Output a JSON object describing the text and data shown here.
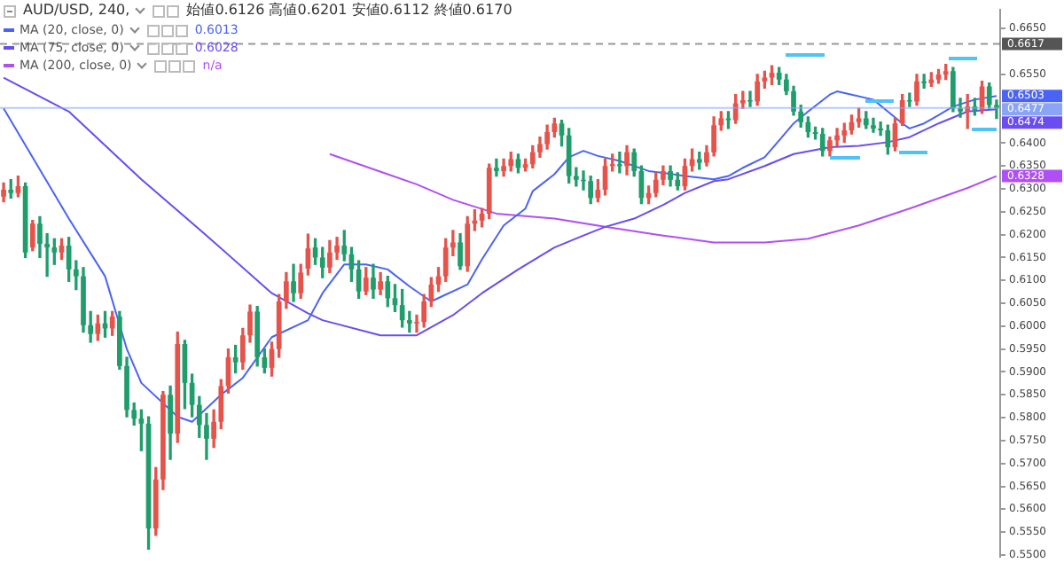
{
  "chart_data": {
    "type": "candlestick",
    "title": "AUD/USD, 240,",
    "subtitle": "始値0.6126 高値0.6201 安値0.6112 終値0.6170",
    "categories": [
      null,
      null,
      null,
      null,
      null,
      null,
      null,
      null,
      null,
      null,
      null,
      null,
      null,
      null,
      null,
      null,
      null,
      null,
      null,
      null,
      null,
      null,
      null,
      null,
      null,
      null,
      null,
      null,
      null,
      null,
      null,
      null,
      null,
      null,
      null,
      null,
      null,
      null,
      null,
      null,
      null,
      null,
      null,
      null,
      null,
      null,
      null,
      null,
      null,
      null,
      null,
      null,
      null,
      null,
      null,
      null,
      null,
      null,
      null,
      null,
      null,
      null,
      null,
      null,
      null,
      null,
      null,
      null,
      null,
      null,
      null,
      null,
      null,
      null,
      null,
      null,
      null,
      null,
      null,
      null,
      null,
      null,
      null,
      null,
      null,
      null,
      null,
      null,
      null,
      null,
      null,
      null,
      null,
      null,
      null,
      null,
      null,
      null,
      null,
      null,
      null,
      null,
      null,
      null,
      null,
      null,
      null,
      null,
      null,
      null,
      null,
      null,
      null,
      null,
      null,
      null,
      null,
      null,
      null,
      null,
      null,
      null,
      null,
      null,
      null,
      null,
      null,
      null,
      null,
      null,
      null,
      null,
      null,
      null,
      null,
      null,
      null,
      null
    ],
    "ohlc": [
      [
        0.6283,
        0.6313,
        0.6272,
        0.6298
      ],
      [
        0.6298,
        0.632,
        0.628,
        0.6291
      ],
      [
        0.6291,
        0.6328,
        0.6283,
        0.6306
      ],
      [
        0.6306,
        0.6313,
        0.615,
        0.6161
      ],
      [
        0.6172,
        0.6231,
        0.6165,
        0.6224
      ],
      [
        0.6224,
        0.6239,
        0.615,
        0.618
      ],
      [
        0.618,
        0.6202,
        0.6109,
        0.6172
      ],
      [
        0.6172,
        0.6191,
        0.6135,
        0.6161
      ],
      [
        0.6161,
        0.6191,
        0.6146,
        0.6176
      ],
      [
        0.6176,
        0.6194,
        0.6098,
        0.6124
      ],
      [
        0.6124,
        0.6143,
        0.608,
        0.6109
      ],
      [
        0.6109,
        0.6128,
        0.5987,
        0.6002
      ],
      [
        0.6002,
        0.6032,
        0.5965,
        0.5983
      ],
      [
        0.5983,
        0.6024,
        0.5969,
        0.6006
      ],
      [
        0.6006,
        0.6032,
        0.5976,
        0.5995
      ],
      [
        0.5995,
        0.6032,
        0.598,
        0.6021
      ],
      [
        0.6021,
        0.6032,
        0.5906,
        0.5913
      ],
      [
        0.5913,
        0.5932,
        0.5802,
        0.5817
      ],
      [
        0.5817,
        0.5832,
        0.5784,
        0.5798
      ],
      [
        0.5798,
        0.5817,
        0.5728,
        0.5787
      ],
      [
        0.5787,
        0.5802,
        0.5513,
        0.5558
      ],
      [
        0.5558,
        0.5691,
        0.5543,
        0.5665
      ],
      [
        0.5665,
        0.5857,
        0.5643,
        0.585
      ],
      [
        0.585,
        0.5869,
        0.5709,
        0.5765
      ],
      [
        0.5765,
        0.5987,
        0.5746,
        0.5961
      ],
      [
        0.5961,
        0.5969,
        0.582,
        0.5876
      ],
      [
        0.5876,
        0.5895,
        0.5802,
        0.5828
      ],
      [
        0.5828,
        0.5846,
        0.5757,
        0.5784
      ],
      [
        0.5784,
        0.5809,
        0.5709,
        0.5754
      ],
      [
        0.5754,
        0.5817,
        0.5735,
        0.5791
      ],
      [
        0.5791,
        0.5883,
        0.5776,
        0.5869
      ],
      [
        0.5869,
        0.595,
        0.5854,
        0.5932
      ],
      [
        0.5932,
        0.5958,
        0.5898,
        0.5921
      ],
      [
        0.5921,
        0.5995,
        0.5906,
        0.598
      ],
      [
        0.598,
        0.6046,
        0.5965,
        0.6032
      ],
      [
        0.6032,
        0.6043,
        0.5913,
        0.5932
      ],
      [
        0.5932,
        0.595,
        0.5898,
        0.5909
      ],
      [
        0.5909,
        0.5965,
        0.5891,
        0.595
      ],
      [
        0.595,
        0.6069,
        0.5932,
        0.6054
      ],
      [
        0.6054,
        0.6117,
        0.6039,
        0.6098
      ],
      [
        0.6098,
        0.6135,
        0.6054,
        0.6072
      ],
      [
        0.6072,
        0.6135,
        0.6061,
        0.6117
      ],
      [
        0.6126,
        0.6201,
        0.6112,
        0.617
      ],
      [
        0.6172,
        0.6191,
        0.6135,
        0.615
      ],
      [
        0.615,
        0.6172,
        0.6106,
        0.6128
      ],
      [
        0.6128,
        0.6187,
        0.6117,
        0.6161
      ],
      [
        0.6161,
        0.6194,
        0.6146,
        0.6176
      ],
      [
        0.6176,
        0.6209,
        0.6143,
        0.6157
      ],
      [
        0.6157,
        0.6172,
        0.6098,
        0.6124
      ],
      [
        0.6124,
        0.6143,
        0.6061,
        0.6076
      ],
      [
        0.6076,
        0.6128,
        0.6069,
        0.6106
      ],
      [
        0.6106,
        0.6135,
        0.6061,
        0.608
      ],
      [
        0.608,
        0.6117,
        0.6069,
        0.6098
      ],
      [
        0.6098,
        0.6109,
        0.6043,
        0.6061
      ],
      [
        0.6061,
        0.6091,
        0.6032,
        0.6046
      ],
      [
        0.6046,
        0.608,
        0.5998,
        0.6013
      ],
      [
        0.6013,
        0.6032,
        0.5987,
        0.6006
      ],
      [
        0.6006,
        0.6024,
        0.5987,
        0.6009
      ],
      [
        0.6009,
        0.6069,
        0.5998,
        0.6054
      ],
      [
        0.6054,
        0.6106,
        0.6043,
        0.6091
      ],
      [
        0.6091,
        0.6128,
        0.6076,
        0.6109
      ],
      [
        0.6109,
        0.6191,
        0.6098,
        0.6172
      ],
      [
        0.6172,
        0.6209,
        0.6154,
        0.6183
      ],
      [
        0.6183,
        0.6202,
        0.6124,
        0.6131
      ],
      [
        0.6131,
        0.6239,
        0.612,
        0.6224
      ],
      [
        0.6224,
        0.6254,
        0.6209,
        0.6231
      ],
      [
        0.6231,
        0.6257,
        0.6217,
        0.6246
      ],
      [
        0.6246,
        0.6354,
        0.6235,
        0.6346
      ],
      [
        0.6346,
        0.6365,
        0.6328,
        0.6339
      ],
      [
        0.6339,
        0.6365,
        0.6328,
        0.635
      ],
      [
        0.635,
        0.638,
        0.6339,
        0.6365
      ],
      [
        0.6365,
        0.6376,
        0.6335,
        0.6346
      ],
      [
        0.6346,
        0.6365,
        0.6339,
        0.6354
      ],
      [
        0.6354,
        0.6394,
        0.6346,
        0.638
      ],
      [
        0.638,
        0.6413,
        0.6369,
        0.6398
      ],
      [
        0.6398,
        0.6439,
        0.6387,
        0.6424
      ],
      [
        0.6424,
        0.6454,
        0.6413,
        0.6443
      ],
      [
        0.6443,
        0.645,
        0.6394,
        0.6417
      ],
      [
        0.6417,
        0.6432,
        0.6313,
        0.6328
      ],
      [
        0.6328,
        0.6346,
        0.6306,
        0.632
      ],
      [
        0.632,
        0.6339,
        0.6298,
        0.6317
      ],
      [
        0.6317,
        0.6328,
        0.6268,
        0.628
      ],
      [
        0.628,
        0.632,
        0.6272,
        0.6298
      ],
      [
        0.6298,
        0.6365,
        0.6287,
        0.635
      ],
      [
        0.635,
        0.6376,
        0.6339,
        0.6354
      ],
      [
        0.6354,
        0.638,
        0.6335,
        0.635
      ],
      [
        0.635,
        0.6394,
        0.6331,
        0.638
      ],
      [
        0.638,
        0.6387,
        0.6328,
        0.6339
      ],
      [
        0.6339,
        0.635,
        0.6268,
        0.628
      ],
      [
        0.628,
        0.6306,
        0.6268,
        0.6291
      ],
      [
        0.6291,
        0.6335,
        0.6283,
        0.632
      ],
      [
        0.632,
        0.635,
        0.6309,
        0.6339
      ],
      [
        0.6339,
        0.635,
        0.6306,
        0.632
      ],
      [
        0.632,
        0.6335,
        0.6298,
        0.6306
      ],
      [
        0.6306,
        0.6365,
        0.6298,
        0.635
      ],
      [
        0.635,
        0.6387,
        0.6339,
        0.6365
      ],
      [
        0.6365,
        0.638,
        0.6343,
        0.6357
      ],
      [
        0.6357,
        0.6394,
        0.635,
        0.638
      ],
      [
        0.638,
        0.6457,
        0.6372,
        0.6439
      ],
      [
        0.6439,
        0.6469,
        0.6428,
        0.6454
      ],
      [
        0.6454,
        0.6469,
        0.6432,
        0.645
      ],
      [
        0.645,
        0.6506,
        0.6443,
        0.6487
      ],
      [
        0.6487,
        0.6513,
        0.6476,
        0.6494
      ],
      [
        0.6494,
        0.6513,
        0.648,
        0.6491
      ],
      [
        0.6491,
        0.655,
        0.6483,
        0.6535
      ],
      [
        0.6535,
        0.6557,
        0.652,
        0.6543
      ],
      [
        0.6543,
        0.6569,
        0.6528,
        0.6554
      ],
      [
        0.6554,
        0.6565,
        0.6528,
        0.6539
      ],
      [
        0.6539,
        0.655,
        0.6506,
        0.6513
      ],
      [
        0.6513,
        0.6524,
        0.6461,
        0.6469
      ],
      [
        0.6469,
        0.6483,
        0.6435,
        0.6446
      ],
      [
        0.6446,
        0.6457,
        0.6413,
        0.6424
      ],
      [
        0.6424,
        0.6435,
        0.6409,
        0.642
      ],
      [
        0.642,
        0.6432,
        0.6372,
        0.6383
      ],
      [
        0.6383,
        0.6413,
        0.6372,
        0.6406
      ],
      [
        0.6406,
        0.6432,
        0.6394,
        0.6417
      ],
      [
        0.6417,
        0.6443,
        0.6402,
        0.6428
      ],
      [
        0.6428,
        0.6461,
        0.642,
        0.6446
      ],
      [
        0.6446,
        0.6476,
        0.6435,
        0.6454
      ],
      [
        0.6454,
        0.6469,
        0.6432,
        0.6439
      ],
      [
        0.6439,
        0.6454,
        0.6424,
        0.6432
      ],
      [
        0.6432,
        0.6446,
        0.6417,
        0.6428
      ],
      [
        0.6428,
        0.6439,
        0.6376,
        0.6391
      ],
      [
        0.6391,
        0.6454,
        0.6383,
        0.6443
      ],
      [
        0.6443,
        0.6506,
        0.6439,
        0.6494
      ],
      [
        0.6494,
        0.6509,
        0.648,
        0.6491
      ],
      [
        0.6491,
        0.655,
        0.6483,
        0.6535
      ],
      [
        0.6535,
        0.655,
        0.652,
        0.6531
      ],
      [
        0.6531,
        0.6554,
        0.6524,
        0.6539
      ],
      [
        0.6539,
        0.6561,
        0.6531,
        0.655
      ],
      [
        0.655,
        0.6572,
        0.6539,
        0.6557
      ],
      [
        0.6557,
        0.6565,
        0.6469,
        0.6476
      ],
      [
        0.6476,
        0.6498,
        0.6457,
        0.6469
      ],
      [
        0.6469,
        0.6506,
        0.6432,
        0.648
      ],
      [
        0.648,
        0.6498,
        0.6461,
        0.6472
      ],
      [
        0.6472,
        0.6535,
        0.6465,
        0.6524
      ],
      [
        0.6524,
        0.6531,
        0.6476,
        0.6483
      ],
      [
        0.6483,
        0.6494,
        0.6454,
        0.6477
      ]
    ],
    "colors": [
      "#e5534b",
      "#1f9d6b",
      "#e5534b",
      "#1f9d6b",
      "#e5534b",
      "#1f9d6b",
      "#1f9d6b",
      "#1f9d6b",
      "#e5534b",
      "#1f9d6b",
      "#1f9d6b",
      "#1f9d6b",
      "#1f9d6b",
      "#e5534b",
      "#1f9d6b",
      "#e5534b",
      "#1f9d6b",
      "#1f9d6b",
      "#1f9d6b",
      "#1f9d6b",
      "#1f9d6b",
      "#e5534b",
      "#e5534b",
      "#1f9d6b",
      "#e5534b",
      "#1f9d6b",
      "#1f9d6b",
      "#1f9d6b",
      "#1f9d6b",
      "#e5534b",
      "#e5534b",
      "#e5534b",
      "#1f9d6b",
      "#e5534b",
      "#e5534b",
      "#1f9d6b",
      "#1f9d6b",
      "#e5534b",
      "#e5534b",
      "#e5534b",
      "#1f9d6b",
      "#e5534b",
      "#e5534b",
      "#1f9d6b",
      "#1f9d6b",
      "#e5534b",
      "#e5534b",
      "#1f9d6b",
      "#1f9d6b",
      "#1f9d6b",
      "#e5534b",
      "#1f9d6b",
      "#e5534b",
      "#1f9d6b",
      "#1f9d6b",
      "#1f9d6b",
      "#1f9d6b",
      "#e5534b",
      "#e5534b",
      "#e5534b",
      "#e5534b",
      "#e5534b",
      "#e5534b",
      "#1f9d6b",
      "#e5534b",
      "#e5534b",
      "#e5534b",
      "#e5534b",
      "#1f9d6b",
      "#e5534b",
      "#e5534b",
      "#1f9d6b",
      "#e5534b",
      "#e5534b",
      "#e5534b",
      "#e5534b",
      "#e5534b",
      "#1f9d6b",
      "#1f9d6b",
      "#1f9d6b",
      "#1f9d6b",
      "#1f9d6b",
      "#e5534b",
      "#e5534b",
      "#e5534b",
      "#1f9d6b",
      "#e5534b",
      "#1f9d6b",
      "#1f9d6b",
      "#e5534b",
      "#e5534b",
      "#e5534b",
      "#1f9d6b",
      "#1f9d6b",
      "#e5534b",
      "#e5534b",
      "#1f9d6b",
      "#e5534b",
      "#e5534b",
      "#e5534b",
      "#1f9d6b",
      "#e5534b",
      "#e5534b",
      "#1f9d6b",
      "#e5534b",
      "#e5534b",
      "#e5534b",
      "#1f9d6b",
      "#1f9d6b",
      "#1f9d6b",
      "#1f9d6b",
      "#1f9d6b",
      "#1f9d6b",
      "#1f9d6b",
      "#e5534b",
      "#e5534b",
      "#e5534b",
      "#e5534b",
      "#e5534b",
      "#1f9d6b",
      "#1f9d6b",
      "#1f9d6b",
      "#1f9d6b",
      "#e5534b",
      "#e5534b",
      "#1f9d6b",
      "#e5534b",
      "#1f9d6b",
      "#e5534b",
      "#e5534b",
      "#e5534b",
      "#1f9d6b",
      "#1f9d6b",
      "#e5534b",
      "#1f9d6b",
      "#e5534b",
      "#1f9d6b",
      "#1f9d6b"
    ],
    "series": [
      {
        "type": "line",
        "name": "MA (20, close, 0)",
        "color": "#4a63f5",
        "values": [
          0.6476,
          null,
          null,
          null,
          null,
          null,
          null,
          null,
          null,
          0.6235,
          null,
          null,
          null,
          null,
          0.6109,
          null,
          null,
          0.595,
          null,
          0.5876,
          null,
          null,
          null,
          null,
          0.5802,
          null,
          0.5791,
          null,
          null,
          null,
          0.585,
          null,
          null,
          0.5887,
          null,
          null,
          null,
          0.5976,
          null,
          null,
          null,
          null,
          0.6013,
          null,
          0.6072,
          null,
          null,
          0.6135,
          null,
          null,
          0.6135,
          null,
          null,
          0.6124,
          null,
          null,
          0.6087,
          null,
          null,
          0.6054,
          null,
          0.6069,
          null,
          null,
          0.6091,
          null,
          0.6146,
          null,
          null,
          0.622,
          null,
          null,
          0.6257,
          0.6295,
          null,
          null,
          0.6332,
          null,
          0.6369,
          null,
          0.6383,
          null,
          0.6372,
          null,
          null,
          0.6361,
          null,
          null,
          null,
          0.6339,
          null,
          0.6335,
          null,
          null,
          0.6328,
          null,
          null,
          null,
          0.6321,
          null,
          0.6328,
          null,
          0.6346,
          null,
          null,
          0.6369,
          null,
          0.6406,
          null,
          0.6443,
          null,
          0.6469,
          null,
          null,
          0.6506,
          0.6513,
          null,
          0.6506,
          null,
          null,
          0.6495,
          null,
          0.6469,
          null,
          0.6443,
          0.6432,
          null,
          0.6443,
          null,
          0.6461,
          null,
          0.648,
          null,
          null,
          0.6495,
          null,
          null,
          0.6503
        ]
      },
      {
        "type": "line",
        "name": "MA (75, close, 0)",
        "color": "#6a4cf0",
        "values": [
          0.6543,
          null,
          null,
          null,
          null,
          null,
          null,
          null,
          null,
          0.6469,
          null,
          null,
          null,
          null,
          null,
          null,
          null,
          null,
          null,
          0.6321,
          null,
          null,
          null,
          null,
          null,
          null,
          null,
          null,
          0.6198,
          null,
          null,
          null,
          null,
          null,
          null,
          null,
          null,
          0.6072,
          null,
          null,
          null,
          null,
          0.6028,
          null,
          0.6013,
          null,
          null,
          null,
          null,
          null,
          null,
          null,
          0.598,
          null,
          null,
          null,
          null,
          0.598,
          null,
          null,
          null,
          null,
          0.6024,
          null,
          null,
          null,
          0.6072,
          null,
          null,
          null,
          null,
          0.6124,
          null,
          null,
          null,
          null,
          0.6172,
          null,
          null,
          null,
          0.6198,
          null,
          null,
          0.6217,
          null,
          null,
          null,
          0.6235,
          null,
          null,
          null,
          0.6265,
          null,
          null,
          0.6291,
          null,
          null,
          null,
          0.6317,
          null,
          0.6321,
          null,
          null,
          null,
          null,
          0.635,
          null,
          null,
          null,
          0.6376,
          null,
          null,
          null,
          null,
          0.6391,
          null,
          null,
          null,
          0.6394,
          null,
          null,
          null,
          0.6402,
          null,
          null,
          0.6413,
          null,
          null,
          null,
          0.6443,
          null,
          null,
          null,
          0.6469,
          null,
          null,
          null,
          0.6474
        ]
      },
      {
        "type": "line",
        "name": "MA (200, close, 0)",
        "color": "#b04ff5",
        "values": [
          null,
          null,
          null,
          null,
          null,
          null,
          null,
          null,
          null,
          null,
          null,
          null,
          null,
          null,
          null,
          null,
          null,
          null,
          null,
          null,
          null,
          null,
          null,
          null,
          null,
          null,
          null,
          null,
          null,
          null,
          null,
          null,
          null,
          null,
          null,
          null,
          null,
          null,
          null,
          null,
          null,
          null,
          null,
          null,
          null,
          0.6376,
          null,
          null,
          null,
          null,
          null,
          null,
          null,
          0.6332,
          null,
          null,
          null,
          0.631,
          null,
          null,
          null,
          null,
          0.6276,
          null,
          null,
          null,
          null,
          null,
          0.6246,
          null,
          null,
          null,
          null,
          null,
          null,
          null,
          0.6235,
          null,
          null,
          null,
          null,
          null,
          null,
          0.6217,
          null,
          null,
          null,
          null,
          null,
          null,
          null,
          0.6198,
          null,
          null,
          null,
          null,
          null,
          null,
          0.6183,
          null,
          null,
          null,
          null,
          null,
          null,
          0.6183,
          null,
          null,
          null,
          null,
          null,
          0.6191,
          null,
          null,
          null,
          null,
          null,
          null,
          0.622,
          null,
          null,
          null,
          null,
          null,
          null,
          0.6257,
          null,
          null,
          null,
          null,
          null,
          null,
          null,
          0.6302,
          null,
          null,
          null,
          0.6328
        ]
      }
    ],
    "ylim": [
      0.5496,
      0.6691
    ],
    "yticks": [
      {
        "value": 0.55,
        "label": "0.5500"
      },
      {
        "value": 0.555,
        "label": "0.5550"
      },
      {
        "value": 0.56,
        "label": "0.5600"
      },
      {
        "value": 0.565,
        "label": "0.5650"
      },
      {
        "value": 0.57,
        "label": "0.5700"
      },
      {
        "value": 0.575,
        "label": "0.5750"
      },
      {
        "value": 0.58,
        "label": "0.5800"
      },
      {
        "value": 0.585,
        "label": "0.5850"
      },
      {
        "value": 0.59,
        "label": "0.5900"
      },
      {
        "value": 0.595,
        "label": "0.5950"
      },
      {
        "value": 0.6,
        "label": "0.6000"
      },
      {
        "value": 0.605,
        "label": "0.6050"
      },
      {
        "value": 0.61,
        "label": "0.6100"
      },
      {
        "value": 0.615,
        "label": "0.6150"
      },
      {
        "value": 0.62,
        "label": "0.6200"
      },
      {
        "value": 0.625,
        "label": "0.6250"
      },
      {
        "value": 0.63,
        "label": "0.6300"
      },
      {
        "value": 0.635,
        "label": "0.6350"
      },
      {
        "value": 0.64,
        "label": "0.6400"
      },
      {
        "value": 0.655,
        "label": "0.6550"
      },
      {
        "value": 0.665,
        "label": "0.6650"
      }
    ],
    "tick_labels": "y",
    "legend": "top left",
    "ref_lines": [
      {
        "axis": "y",
        "value": 0.6617,
        "label": "0.6617",
        "color": "#555555",
        "line_style": "dashed"
      },
      {
        "axis": "y",
        "value": 0.6477,
        "label": "0.6477",
        "color": "#8aa5f5"
      }
    ],
    "annotations": [
      "0.6013",
      "0.6028",
      "n/a",
      "0.6503",
      "0.6474",
      "0.6328"
    ]
  }
}
